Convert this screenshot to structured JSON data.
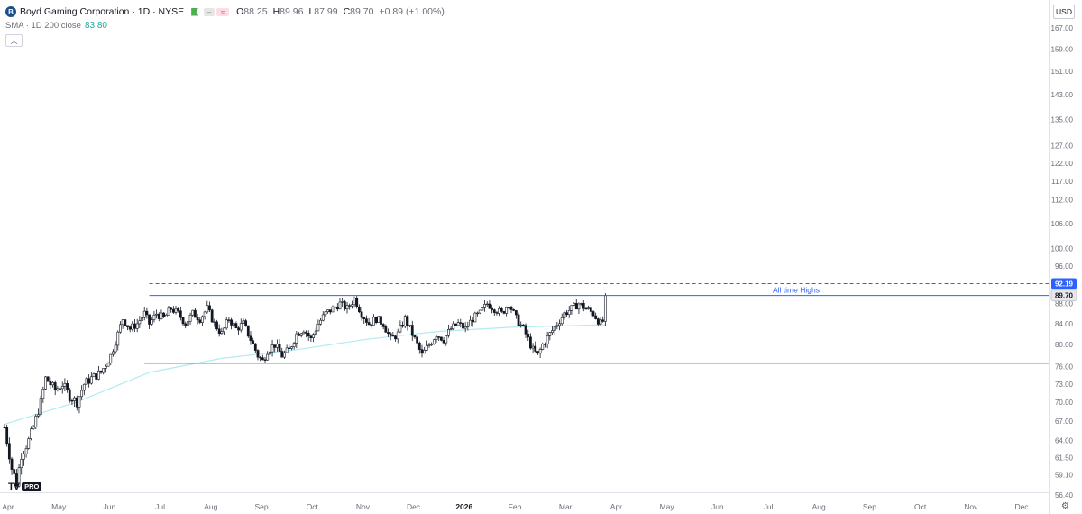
{
  "header": {
    "title": "Boyd Gaming Corporation",
    "interval": "1D",
    "exchange": "NYSE",
    "open_label": "O",
    "open": "88.25",
    "high_label": "H",
    "high": "89.96",
    "low_label": "L",
    "low": "87.99",
    "close_label": "C",
    "close": "89.70",
    "change": "+0.89 (+1.00%)"
  },
  "indicator": {
    "label": "SMA · 1D 200 close",
    "value": "83.80"
  },
  "currency": "USD",
  "brand": "PRO",
  "colors": {
    "level_line": "#2962ff",
    "sma_line": "#b2ebf2",
    "candle": "#131722",
    "price_badge_blue": "#2962ff",
    "grid": "#f0f3fa"
  },
  "chart_data": {
    "type": "candlestick",
    "y_scale": "log",
    "ylim": [
      56.4,
      176
    ],
    "price_ticks": [
      "167.00",
      "159.00",
      "151.00",
      "143.00",
      "135.00",
      "127.00",
      "122.00",
      "117.00",
      "112.00",
      "106.00",
      "100.00",
      "96.00",
      "88.00",
      "84.00",
      "80.00",
      "76.00",
      "73.00",
      "70.00",
      "67.00",
      "64.00",
      "61.50",
      "59.10",
      "56.40"
    ],
    "price_tick_values": [
      167,
      159,
      151,
      143,
      135,
      127,
      122,
      117,
      112,
      106,
      100,
      96,
      88,
      84,
      80,
      76,
      73,
      70,
      67,
      64,
      61.5,
      59.1,
      56.4
    ],
    "time_ticks": [
      "Apr",
      "May",
      "Jun",
      "Jul",
      "Aug",
      "Sep",
      "Oct",
      "Nov",
      "Dec",
      "2026",
      "Feb",
      "Mar",
      "Apr",
      "May",
      "Jun",
      "Jul",
      "Aug",
      "Sep",
      "Oct",
      "Nov",
      "Dec"
    ],
    "time_ticks_bold": [
      false,
      false,
      false,
      false,
      false,
      false,
      false,
      false,
      false,
      true,
      false,
      false,
      false,
      false,
      false,
      false,
      false,
      false,
      false,
      false,
      false
    ],
    "months_per_tick": 1,
    "trading_days_total": 297,
    "price_series": [
      [
        0,
        66
      ],
      [
        3,
        60
      ],
      [
        5,
        58
      ],
      [
        7,
        62
      ],
      [
        10,
        64
      ],
      [
        12,
        66
      ],
      [
        15,
        70
      ],
      [
        17,
        74
      ],
      [
        19,
        73
      ],
      [
        21,
        72
      ],
      [
        24,
        73
      ],
      [
        27,
        71
      ],
      [
        30,
        70
      ],
      [
        33,
        73
      ],
      [
        36,
        74
      ],
      [
        40,
        75
      ],
      [
        44,
        78
      ],
      [
        47,
        82
      ],
      [
        49,
        85
      ],
      [
        52,
        83
      ],
      [
        55,
        84
      ],
      [
        58,
        86
      ],
      [
        60,
        84
      ],
      [
        63,
        86
      ],
      [
        66,
        85
      ],
      [
        69,
        87
      ],
      [
        72,
        86
      ],
      [
        75,
        84
      ],
      [
        78,
        86
      ],
      [
        81,
        85
      ],
      [
        84,
        87
      ],
      [
        87,
        84
      ],
      [
        90,
        82
      ],
      [
        93,
        85
      ],
      [
        96,
        83
      ],
      [
        99,
        84
      ],
      [
        102,
        81
      ],
      [
        105,
        78
      ],
      [
        107,
        77
      ],
      [
        109,
        79
      ],
      [
        112,
        80
      ],
      [
        115,
        78
      ],
      [
        118,
        79
      ],
      [
        121,
        82
      ],
      [
        124,
        83
      ],
      [
        127,
        81
      ],
      [
        130,
        84
      ],
      [
        133,
        86
      ],
      [
        136,
        87
      ],
      [
        139,
        88
      ],
      [
        142,
        87
      ],
      [
        145,
        89
      ],
      [
        148,
        86
      ],
      [
        151,
        84
      ],
      [
        154,
        85
      ],
      [
        157,
        84
      ],
      [
        160,
        81
      ],
      [
        163,
        82
      ],
      [
        166,
        85
      ],
      [
        168,
        83
      ],
      [
        171,
        80
      ],
      [
        173,
        78
      ],
      [
        176,
        80
      ],
      [
        179,
        82
      ],
      [
        182,
        81
      ],
      [
        185,
        83
      ],
      [
        188,
        84
      ],
      [
        191,
        83
      ],
      [
        194,
        85
      ],
      [
        197,
        86
      ],
      [
        200,
        88
      ],
      [
        203,
        87
      ],
      [
        206,
        86
      ],
      [
        209,
        88
      ],
      [
        212,
        85
      ],
      [
        215,
        83
      ],
      [
        217,
        81
      ],
      [
        219,
        79
      ],
      [
        221,
        78
      ],
      [
        223,
        80
      ],
      [
        226,
        82
      ],
      [
        229,
        84
      ],
      [
        232,
        86
      ],
      [
        235,
        87
      ],
      [
        238,
        88
      ],
      [
        241,
        87
      ],
      [
        244,
        86
      ],
      [
        247,
        84
      ],
      [
        249,
        85
      ]
    ],
    "sma_series": [
      [
        0,
        66.5
      ],
      [
        30,
        70
      ],
      [
        60,
        75
      ],
      [
        90,
        77.5
      ],
      [
        120,
        79
      ],
      [
        150,
        81
      ],
      [
        180,
        82.5
      ],
      [
        210,
        83.3
      ],
      [
        249,
        83.8
      ]
    ],
    "levels": [
      {
        "value": 89.7,
        "style": "solid"
      },
      {
        "value": 76.6,
        "style": "solid"
      },
      {
        "value": 92.19,
        "style": "dashed"
      }
    ],
    "annotation": "All time Highs",
    "price_labels": [
      {
        "text": "92.19",
        "value": 92.19,
        "style": "blue"
      },
      {
        "text": "89.70",
        "value": 89.7,
        "style": "gray"
      }
    ]
  }
}
